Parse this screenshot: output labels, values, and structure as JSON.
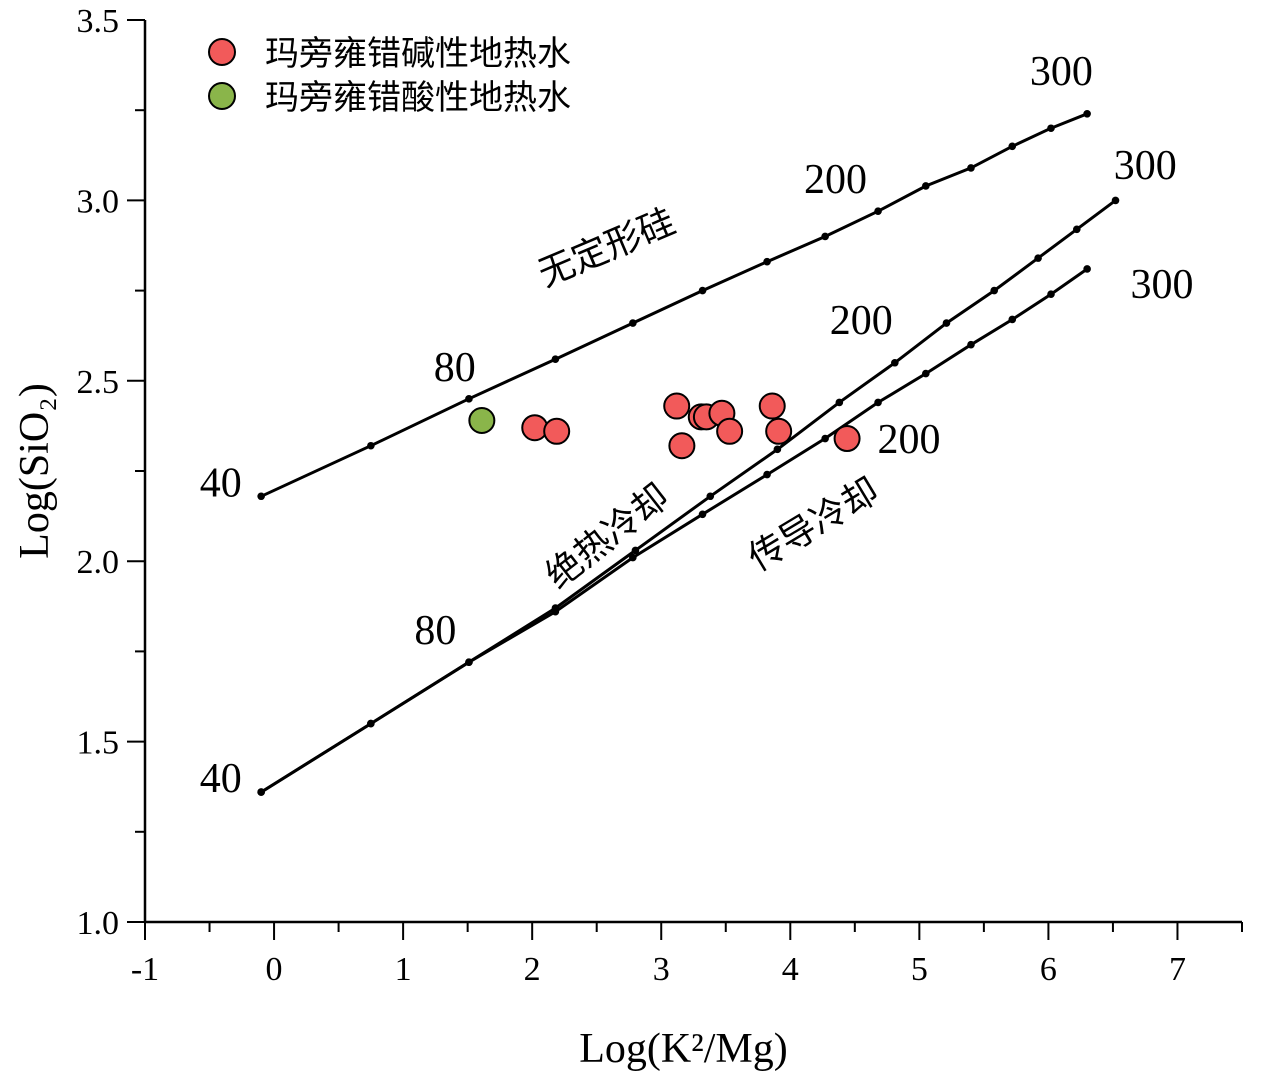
{
  "chart_data": {
    "type": "scatter",
    "xlabel": "Log(K²/Mg)",
    "ylabel": "Log(SiO₂)",
    "xlim": [
      -1,
      7.5
    ],
    "ylim": [
      1.0,
      3.5
    ],
    "x_ticks": [
      "-1",
      "0",
      "1",
      "2",
      "3",
      "4",
      "5",
      "6",
      "7"
    ],
    "y_ticks": [
      "1.0",
      "1.5",
      "2.0",
      "2.5",
      "3.0",
      "3.5"
    ],
    "legend_position": "top-left",
    "series": [
      {
        "name": "玛旁雍错碱性地热水",
        "color": "#f25a5a",
        "points": [
          [
            2.02,
            2.37
          ],
          [
            2.19,
            2.36
          ],
          [
            3.12,
            2.43
          ],
          [
            3.16,
            2.32
          ],
          [
            3.31,
            2.4
          ],
          [
            3.35,
            2.4
          ],
          [
            3.47,
            2.41
          ],
          [
            3.53,
            2.36
          ],
          [
            3.86,
            2.43
          ],
          [
            3.91,
            2.36
          ],
          [
            4.44,
            2.34
          ]
        ]
      },
      {
        "name": "玛旁雍错酸性地热水",
        "color": "#8ab54a",
        "points": [
          [
            1.61,
            2.39
          ]
        ]
      }
    ],
    "curves": [
      {
        "name": "无定形硅",
        "points": [
          [
            -0.1,
            2.18
          ],
          [
            0.75,
            2.32
          ],
          [
            1.51,
            2.45
          ],
          [
            2.18,
            2.56
          ],
          [
            2.78,
            2.66
          ],
          [
            3.32,
            2.75
          ],
          [
            3.82,
            2.83
          ],
          [
            4.27,
            2.9
          ],
          [
            4.68,
            2.97
          ],
          [
            5.05,
            3.04
          ],
          [
            5.4,
            3.09
          ],
          [
            5.72,
            3.15
          ],
          [
            6.02,
            3.2
          ],
          [
            6.3,
            3.24
          ]
        ]
      },
      {
        "name": "绝热冷却",
        "points": [
          [
            -0.1,
            1.36
          ],
          [
            0.75,
            1.55
          ],
          [
            1.51,
            1.72
          ],
          [
            2.18,
            1.87
          ],
          [
            2.8,
            2.03
          ],
          [
            3.38,
            2.18
          ],
          [
            3.9,
            2.31
          ],
          [
            4.38,
            2.44
          ],
          [
            4.81,
            2.55
          ],
          [
            5.21,
            2.66
          ],
          [
            5.58,
            2.75
          ],
          [
            5.92,
            2.84
          ],
          [
            6.22,
            2.92
          ],
          [
            6.52,
            3.0
          ]
        ]
      },
      {
        "name": "传导冷却",
        "points": [
          [
            -0.1,
            1.36
          ],
          [
            0.75,
            1.55
          ],
          [
            1.51,
            1.72
          ],
          [
            2.18,
            1.86
          ],
          [
            2.78,
            2.01
          ],
          [
            3.32,
            2.13
          ],
          [
            3.82,
            2.24
          ],
          [
            4.27,
            2.34
          ],
          [
            4.68,
            2.44
          ],
          [
            5.05,
            2.52
          ],
          [
            5.4,
            2.6
          ],
          [
            5.72,
            2.67
          ],
          [
            6.02,
            2.74
          ],
          [
            6.3,
            2.81
          ]
        ]
      }
    ],
    "annotations": [
      {
        "text": "40",
        "x": -0.25,
        "y": 2.18,
        "anchor": "end",
        "rotate": 0
      },
      {
        "text": "80",
        "x": 1.4,
        "y": 2.5,
        "anchor": "middle",
        "rotate": 0
      },
      {
        "text": "200",
        "x": 4.35,
        "y": 3.02,
        "anchor": "middle",
        "rotate": 0
      },
      {
        "text": "300",
        "x": 6.1,
        "y": 3.32,
        "anchor": "middle",
        "rotate": 0
      },
      {
        "text": "无定形硅",
        "x": 2.1,
        "y": 2.76,
        "anchor": "start",
        "rotate": -23
      },
      {
        "text": "40",
        "x": -0.25,
        "y": 1.36,
        "anchor": "end",
        "rotate": 0
      },
      {
        "text": "80",
        "x": 1.25,
        "y": 1.77,
        "anchor": "middle",
        "rotate": 0
      },
      {
        "text": "200",
        "x": 4.55,
        "y": 2.63,
        "anchor": "middle",
        "rotate": 0
      },
      {
        "text": "300",
        "x": 6.75,
        "y": 3.06,
        "anchor": "middle",
        "rotate": 0
      },
      {
        "text": "绝热冷却",
        "x": 2.2,
        "y": 1.92,
        "anchor": "start",
        "rotate": -38
      },
      {
        "text": "200",
        "x": 4.92,
        "y": 2.3,
        "anchor": "middle",
        "rotate": 0
      },
      {
        "text": "300",
        "x": 6.88,
        "y": 2.73,
        "anchor": "middle",
        "rotate": 0
      },
      {
        "text": "传导冷却",
        "x": 3.75,
        "y": 1.97,
        "anchor": "start",
        "rotate": -31
      }
    ]
  }
}
